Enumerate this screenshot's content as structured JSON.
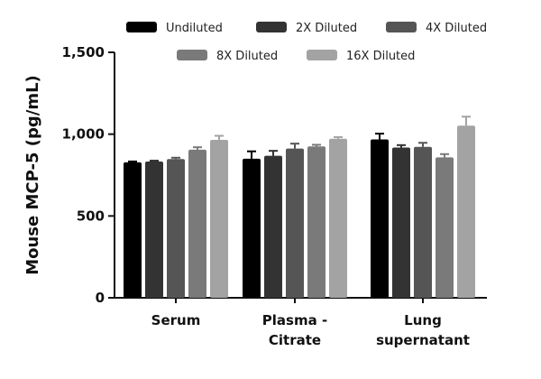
{
  "chart_data": {
    "type": "bar",
    "ylabel": "Mouse MCP-5 (pg/mL)",
    "xlabel": "",
    "ylim": [
      0,
      1500
    ],
    "yticks": [
      0,
      500,
      1000,
      1500
    ],
    "ytick_labels": [
      "0",
      "500",
      "1,000",
      "1,500"
    ],
    "categories": [
      [
        "Serum"
      ],
      [
        "Plasma -",
        "Citrate"
      ],
      [
        "Lung",
        "supernatant"
      ]
    ],
    "series": [
      {
        "name": "Undiluted",
        "color": "#000000",
        "values": [
          828,
          850,
          968
        ],
        "errors": [
          5,
          45,
          35
        ]
      },
      {
        "name": "2X Diluted",
        "color": "#333333",
        "values": [
          833,
          868,
          918
        ],
        "errors": [
          5,
          30,
          15
        ]
      },
      {
        "name": "4X Diluted",
        "color": "#555555",
        "values": [
          848,
          912,
          922
        ],
        "errors": [
          8,
          30,
          25
        ]
      },
      {
        "name": "8X Diluted",
        "color": "#7a7a7a",
        "values": [
          905,
          925,
          858
        ],
        "errors": [
          15,
          10,
          20
        ]
      },
      {
        "name": "16X Diluted",
        "color": "#a3a3a3",
        "values": [
          965,
          972,
          1052
        ],
        "errors": [
          25,
          10,
          55
        ]
      }
    ],
    "legend_position": "top",
    "grid": false
  }
}
